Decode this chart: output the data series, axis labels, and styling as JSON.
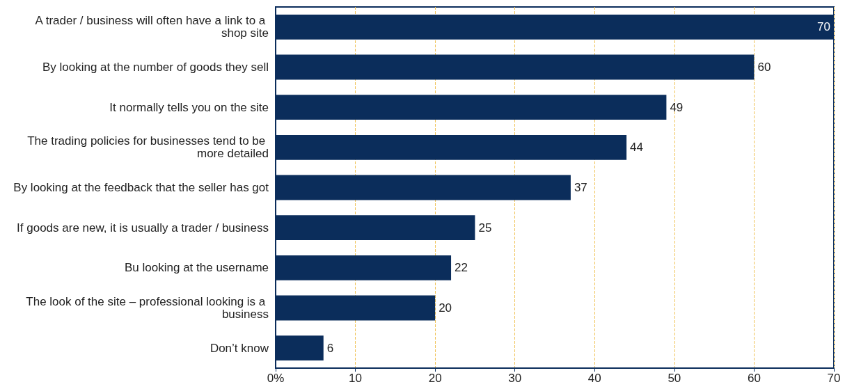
{
  "chart_data": {
    "type": "bar",
    "orientation": "horizontal",
    "categories": [
      "A trader / business will often have a link to a shop site",
      "By looking at the number of goods they sell",
      "It normally tells you on the site",
      "The trading policies for businesses tend to be more detailed",
      "By looking at the feedback that the seller has got",
      "If goods are new, it is usually a trader / business",
      "Bu looking at the username",
      "The look of the site – professional looking is a business",
      "Don’t know"
    ],
    "values": [
      70,
      60,
      49,
      44,
      37,
      25,
      22,
      20,
      6
    ],
    "color": "#0b2d5b",
    "xlim": [
      0,
      70
    ],
    "xticks": [
      {
        "value": 0,
        "label": "0%"
      },
      10,
      20,
      30,
      40,
      50,
      60,
      70
    ],
    "grid": "x",
    "data_labels": true
  }
}
